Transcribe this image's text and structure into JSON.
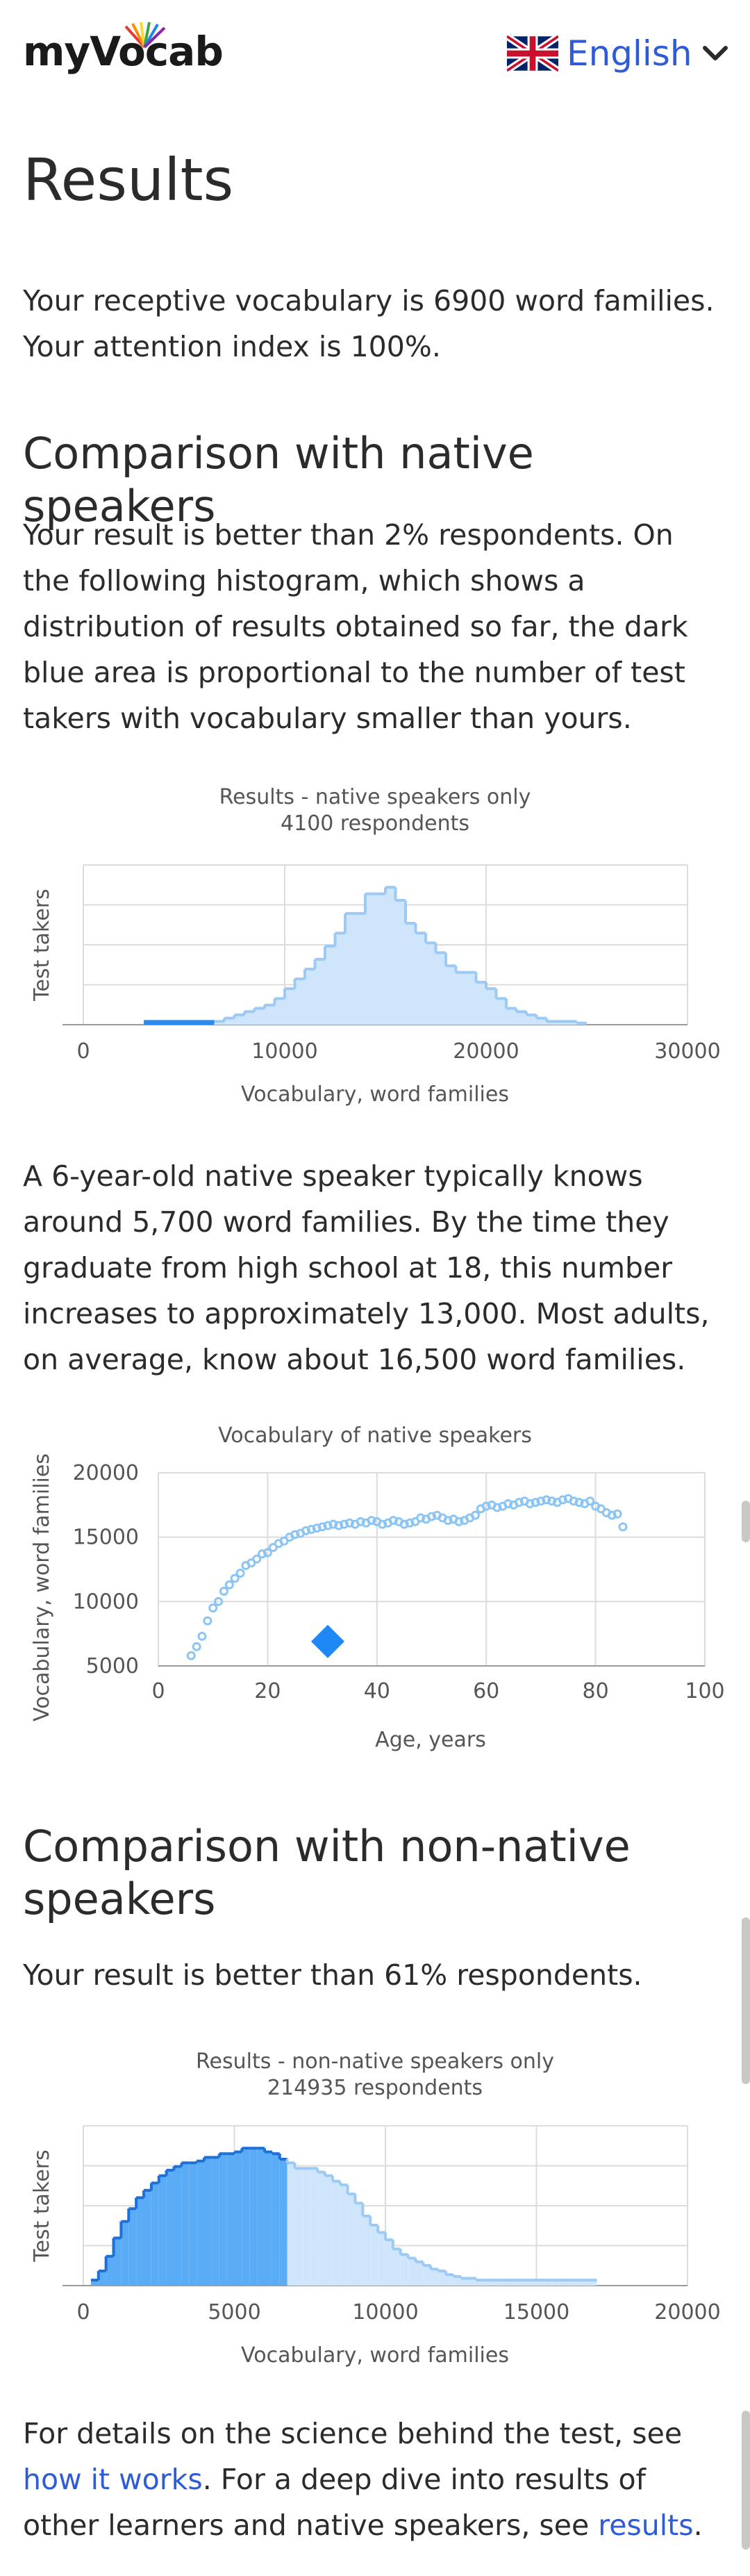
{
  "header": {
    "logo": "myVocab",
    "language": "English",
    "colors": {
      "accent": "#2f5bd6"
    }
  },
  "page_title": "Results",
  "summary": {
    "line1": "Your receptive vocabulary is 6900 word families.",
    "line2": "Your attention index is 100%."
  },
  "native": {
    "heading": "Comparison with native speakers",
    "paragraph": "Your result is better than 2% respondents. On the following histogram, which shows a distribution of results obtained so far, the dark blue area is proportional to the number of test takers with vocabulary smaller than yours.",
    "paragraph2": "A 6-year-old native speaker typically knows around 5,700 word families. By the time they graduate from high school at 18, this number increases to approximately 13,000. Most adults, on average, know about 16,500 word families."
  },
  "nonnative": {
    "heading": "Comparison with non-native speakers",
    "paragraph": "Your result is better than 61% respondents."
  },
  "footer": {
    "text1": "For details on the science behind the test, see ",
    "link1": "how it works",
    "text2": ". For a deep dive into results of other learners and native speakers, see ",
    "link2": "results",
    "text3": "."
  },
  "chart_data": [
    {
      "type": "area",
      "title": "Results - native speakers only",
      "subtitle": "4100 respondents",
      "xlabel": "Vocabulary, word families",
      "ylabel": "Test takers",
      "xlim": [
        0,
        30000
      ],
      "xticks": [
        "0",
        "10000",
        "20000",
        "30000"
      ],
      "grid": true,
      "user_value": 6900,
      "bin_width": 500,
      "bins_start": 3000,
      "values": [
        1,
        1,
        1,
        1,
        1,
        1,
        1,
        1,
        2,
        3,
        4,
        5,
        6,
        8,
        11,
        14,
        17,
        20,
        24,
        28,
        34,
        34,
        40,
        40,
        42,
        38,
        31,
        28,
        25,
        22,
        18,
        16,
        16,
        13,
        11,
        8,
        5,
        4,
        3,
        2,
        1,
        1,
        1,
        0.5
      ],
      "colors": {
        "fill": "#cfe5fb",
        "stroke": "#9ccaf4",
        "highlight": "#2a8af0"
      }
    },
    {
      "type": "scatter",
      "title": "Vocabulary of native speakers",
      "xlabel": "Age, years",
      "ylabel": "Vocabulary, word families",
      "xlim": [
        0,
        100
      ],
      "ylim": [
        5000,
        20000
      ],
      "xticks": [
        "0",
        "20",
        "40",
        "60",
        "80",
        "100"
      ],
      "yticks": [
        "5000",
        "10000",
        "15000",
        "20000"
      ],
      "grid": true,
      "x": [
        6,
        7,
        8,
        9,
        10,
        11,
        12,
        13,
        14,
        15,
        16,
        17,
        18,
        19,
        20,
        21,
        22,
        23,
        24,
        25,
        26,
        27,
        28,
        29,
        30,
        31,
        32,
        33,
        34,
        35,
        36,
        37,
        38,
        39,
        40,
        41,
        42,
        43,
        44,
        45,
        46,
        47,
        48,
        49,
        50,
        51,
        52,
        53,
        54,
        55,
        56,
        57,
        58,
        59,
        60,
        61,
        62,
        63,
        64,
        65,
        66,
        67,
        68,
        69,
        70,
        71,
        72,
        73,
        74,
        75,
        76,
        77,
        78,
        79,
        80,
        81,
        82,
        83,
        84,
        85
      ],
      "y": [
        5800,
        6500,
        7300,
        8500,
        9500,
        10000,
        10800,
        11300,
        11800,
        12200,
        12800,
        13000,
        13300,
        13700,
        13800,
        14200,
        14500,
        14700,
        15000,
        15200,
        15300,
        15500,
        15600,
        15700,
        15800,
        15900,
        16000,
        15900,
        16000,
        16100,
        16000,
        16200,
        16100,
        16300,
        16200,
        16000,
        16100,
        16300,
        16200,
        16000,
        16100,
        16200,
        16500,
        16400,
        16600,
        16700,
        16500,
        16300,
        16400,
        16200,
        16300,
        16500,
        16700,
        17200,
        17400,
        17500,
        17300,
        17400,
        17600,
        17500,
        17700,
        17800,
        17600,
        17700,
        17800,
        17900,
        17800,
        17700,
        17900,
        18000,
        17800,
        17700,
        17600,
        17800,
        17400,
        17200,
        16900,
        16700,
        16800,
        15800
      ],
      "user_point": {
        "x": 31,
        "y": 6900
      },
      "colors": {
        "points": "#8cc4f3",
        "user": "#1e88f5"
      }
    },
    {
      "type": "area",
      "title": "Results - non-native speakers only",
      "subtitle": "214935 respondents",
      "xlabel": "Vocabulary, word families",
      "ylabel": "Test takers",
      "xlim": [
        0,
        20000
      ],
      "xticks": [
        "0",
        "5000",
        "10000",
        "15000",
        "20000"
      ],
      "grid": true,
      "user_value": 6900,
      "bin_width": 250,
      "bins_start": 250,
      "values": [
        3,
        8,
        16,
        26,
        35,
        42,
        48,
        52,
        56,
        60,
        63,
        65,
        67,
        67,
        68,
        70,
        70,
        72,
        72,
        73,
        75,
        75,
        75,
        73,
        72,
        69,
        67,
        64,
        64,
        64,
        62,
        60,
        57,
        55,
        50,
        45,
        38,
        33,
        29,
        25,
        20,
        17,
        15,
        13,
        11,
        9,
        8,
        6,
        5,
        4,
        4,
        3,
        3,
        3,
        3,
        3,
        3,
        3,
        3,
        3,
        3,
        3,
        3,
        3,
        3,
        3,
        3
      ],
      "colors": {
        "fill": "#cfe5fb",
        "stroke": "#9ccaf4",
        "highlight": "#5aacf7",
        "highlight_stroke": "#1e6fd6"
      }
    }
  ]
}
